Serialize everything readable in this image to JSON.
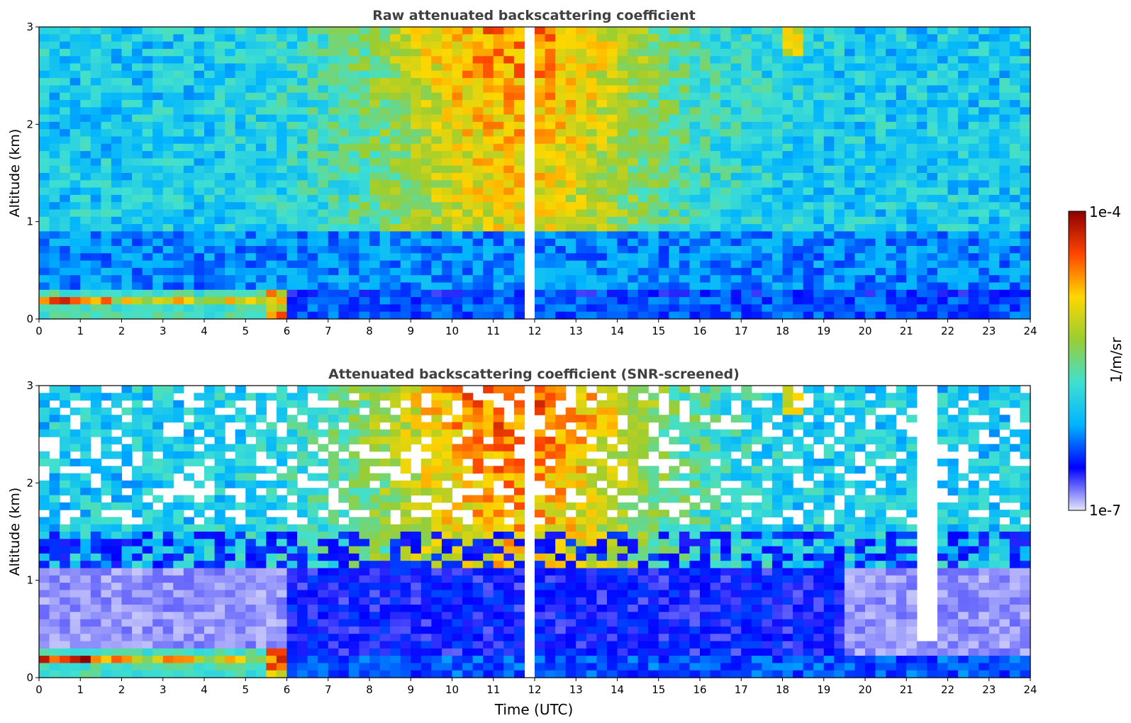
{
  "chart_data": [
    {
      "type": "heatmap",
      "title": "Raw attenuated backscattering coefficient",
      "xlabel": "",
      "ylabel": "Altitude (km)",
      "xlim": [
        0,
        24
      ],
      "ylim": [
        0,
        3
      ],
      "xticks": [
        "0",
        "1",
        "2",
        "3",
        "4",
        "5",
        "6",
        "7",
        "8",
        "9",
        "10",
        "11",
        "12",
        "13",
        "14",
        "15",
        "16",
        "17",
        "18",
        "19",
        "20",
        "21",
        "22",
        "23",
        "24"
      ],
      "yticks": [
        "0",
        "1",
        "2",
        "3"
      ],
      "screened": false
    },
    {
      "type": "heatmap",
      "title": "Attenuated backscattering coefficient (SNR-screened)",
      "xlabel": "Time (UTC)",
      "ylabel": "Altitude (km)",
      "xlim": [
        0,
        24
      ],
      "ylim": [
        0,
        3
      ],
      "xticks": [
        "0",
        "1",
        "2",
        "3",
        "4",
        "5",
        "6",
        "7",
        "8",
        "9",
        "10",
        "11",
        "12",
        "13",
        "14",
        "15",
        "16",
        "17",
        "18",
        "19",
        "20",
        "21",
        "22",
        "23",
        "24"
      ],
      "yticks": [
        "0",
        "1",
        "2",
        "3"
      ],
      "screened": true
    }
  ],
  "colorbar": {
    "label": "1/m/sr",
    "max_label": "1e-4",
    "min_label": "1e-7",
    "colormap": [
      "#e6e6fa",
      "#0000ff",
      "#00b4ff",
      "#40e0d0",
      "#9acd32",
      "#ffd700",
      "#ff4500",
      "#8b0000"
    ],
    "scale": "log"
  },
  "colors": {
    "title": "#404040",
    "axis": "#000000"
  }
}
